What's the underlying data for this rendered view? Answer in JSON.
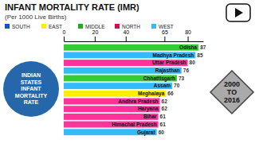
{
  "chart_data": {
    "type": "bar",
    "orientation": "horizontal",
    "title": "INFANT MORTALITY RATE (IMR)",
    "subtitle": "(Per 1000 Live Births)",
    "categories": [
      "Odisha",
      "Madhya Pradesh",
      "Uttar Pradesh",
      "Rajasthan",
      "Chhattisgarh",
      "Assam",
      "Meghalaya",
      "Andhra Pradesh",
      "Haryana",
      "Bihar",
      "Himachal Pradesh",
      "Gujarat"
    ],
    "values": [
      87,
      85,
      80,
      76,
      73,
      70,
      66,
      62,
      62,
      61,
      61,
      60
    ],
    "colors": [
      "#33cc33",
      "#33bbff",
      "#ff3399",
      "#33bbff",
      "#33cc33",
      "#33bbff",
      "#ffee00",
      "#ff3399",
      "#ff3399",
      "#ff3399",
      "#ff3399",
      "#33bbff"
    ],
    "xlim": [
      0,
      90
    ],
    "xticks": [
      0,
      20,
      40,
      65,
      80
    ],
    "data_labels": true,
    "grid": false,
    "legend_entries": [
      {
        "name": "SOUTH",
        "color": "#1155cc"
      },
      {
        "name": "EAST",
        "color": "#ffee00"
      },
      {
        "name": "MIDDLE",
        "color": "#22aa22"
      },
      {
        "name": "NORTH",
        "color": "#cc1155"
      },
      {
        "name": "WEST",
        "color": "#33bbff"
      }
    ],
    "annotations": [
      {
        "text": "INDIAN\nSTATES\nINFANT\nMORTALITY\nRATE",
        "color": "#1a5fa8"
      },
      {
        "text": "2000\nTO\n2016",
        "color": "#aaaaaa"
      }
    ]
  }
}
